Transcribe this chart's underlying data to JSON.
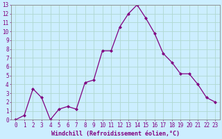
{
  "x": [
    0,
    1,
    2,
    3,
    4,
    5,
    6,
    7,
    8,
    9,
    10,
    11,
    12,
    13,
    14,
    15,
    16,
    17,
    18,
    19,
    20,
    21,
    22,
    23
  ],
  "y": [
    0.0,
    0.5,
    3.5,
    2.5,
    0.0,
    1.2,
    1.5,
    1.2,
    4.2,
    4.5,
    7.8,
    7.8,
    10.5,
    12.0,
    13.0,
    11.5,
    9.8,
    7.5,
    6.5,
    5.2,
    5.2,
    4.0,
    2.5,
    2.0
  ],
  "line_color": "#800080",
  "marker": "D",
  "marker_size": 2.0,
  "line_width": 0.9,
  "bg_color": "#cceeff",
  "grid_color": "#aaddcc",
  "xlabel": "Windchill (Refroidissement éolien,°C)",
  "xlim": [
    -0.5,
    23.5
  ],
  "ylim": [
    0,
    13
  ],
  "yticks": [
    0,
    1,
    2,
    3,
    4,
    5,
    6,
    7,
    8,
    9,
    10,
    11,
    12,
    13
  ],
  "xticks": [
    0,
    1,
    2,
    3,
    4,
    5,
    6,
    7,
    8,
    9,
    10,
    11,
    12,
    13,
    14,
    15,
    16,
    17,
    18,
    19,
    20,
    21,
    22,
    23
  ],
  "xlabel_fontsize": 6.0,
  "tick_fontsize": 5.5,
  "axis_color": "#800080",
  "spine_color": "#888888"
}
